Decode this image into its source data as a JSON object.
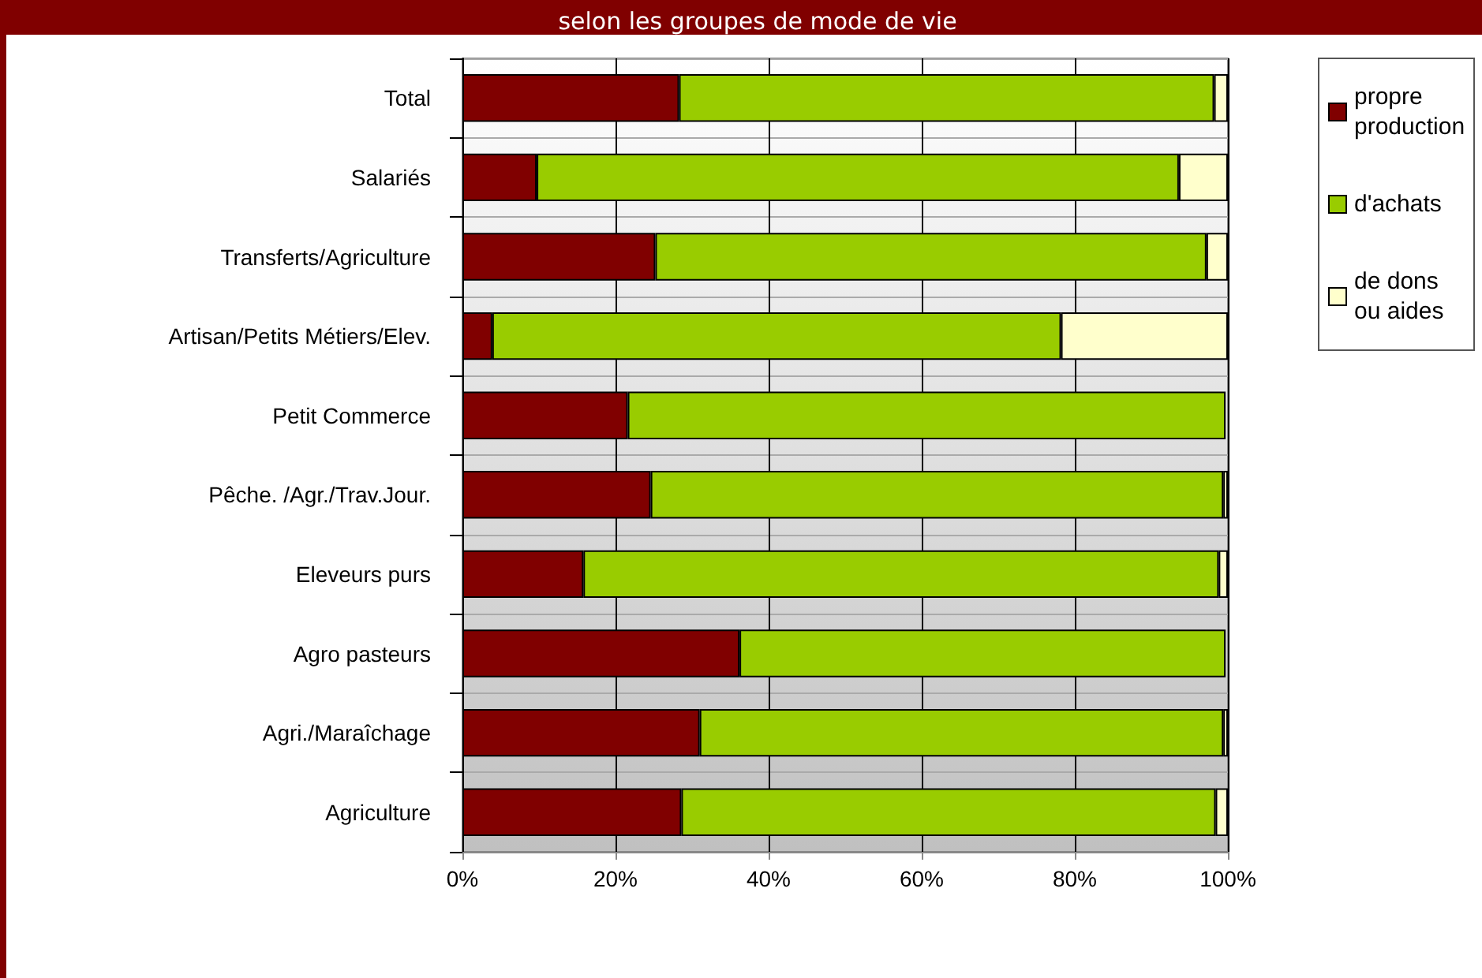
{
  "chart_data": {
    "type": "bar",
    "orientation": "horizontal",
    "stacked": true,
    "title": "selon les groupes de mode de vie",
    "categories": [
      "Total",
      "Salariés",
      "Transferts/Agriculture",
      "Artisan/Petits Métiers/Elev.",
      "Petit Commerce",
      "Pêche. /Agr./Trav.Jour.",
      "Eleveurs purs",
      "Agro pasteurs",
      "Agri./Maraîchage",
      "Agriculture"
    ],
    "series": [
      {
        "name": "propre production",
        "color": "#800000",
        "values": [
          28.3,
          9.7,
          25.2,
          3.9,
          21.6,
          24.6,
          15.8,
          36.2,
          31.0,
          28.6
        ]
      },
      {
        "name": "d'achats",
        "color": "#99cc00",
        "values": [
          69.9,
          83.9,
          72.0,
          74.3,
          78.1,
          74.8,
          83.0,
          63.5,
          68.4,
          69.8
        ]
      },
      {
        "name": "de dons ou aides",
        "color": "#ffffcc",
        "values": [
          1.8,
          6.4,
          2.8,
          21.8,
          null,
          0.6,
          1.2,
          null,
          0.6,
          1.6
        ]
      }
    ],
    "xlim": [
      0,
      100
    ],
    "xticks": [
      {
        "value": 0,
        "label": "0%"
      },
      {
        "value": 20,
        "label": "20%"
      },
      {
        "value": 40,
        "label": "40%"
      },
      {
        "value": 60,
        "label": "60%"
      },
      {
        "value": 80,
        "label": "80%"
      },
      {
        "value": 100,
        "label": "100%"
      }
    ],
    "grid": true,
    "legend": "top right"
  }
}
